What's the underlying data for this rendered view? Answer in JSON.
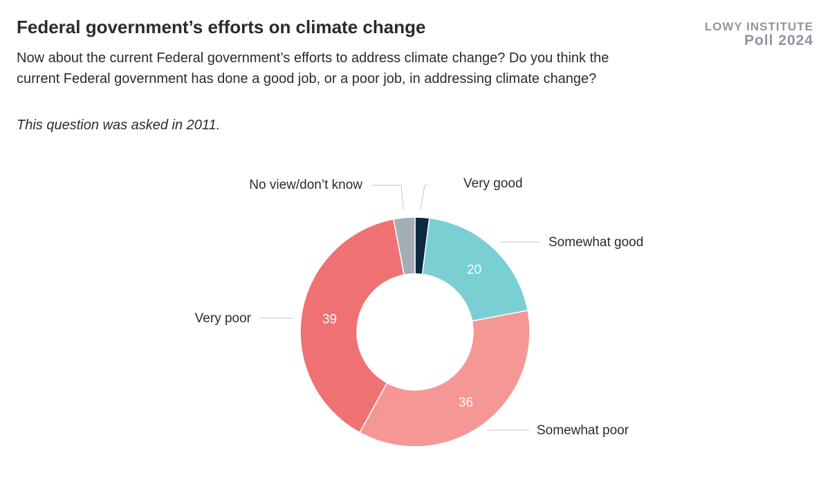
{
  "header": {
    "title": "Federal government’s efforts on climate change",
    "subtitle": "Now about the current Federal government’s efforts to address climate change? Do you think the current Federal government has done a good job, or a poor job, in addressing climate change?",
    "note": "This question was asked in 2011."
  },
  "brand": {
    "line1": "LOWY INSTITUTE",
    "line2": "Poll 2024"
  },
  "chart_data": {
    "type": "pie",
    "donut": true,
    "categories": [
      "Very good",
      "Somewhat good",
      "Somewhat poor",
      "Very poor",
      "No view/don’t know"
    ],
    "values": [
      2,
      20,
      36,
      39,
      3
    ],
    "data_labels": [
      "",
      "20",
      "36",
      "39",
      ""
    ],
    "colors": [
      "#0d2a3e",
      "#79cfd1",
      "#f59794",
      "#f07173",
      "#a3adb6"
    ],
    "legend": "callout labels around ring"
  }
}
